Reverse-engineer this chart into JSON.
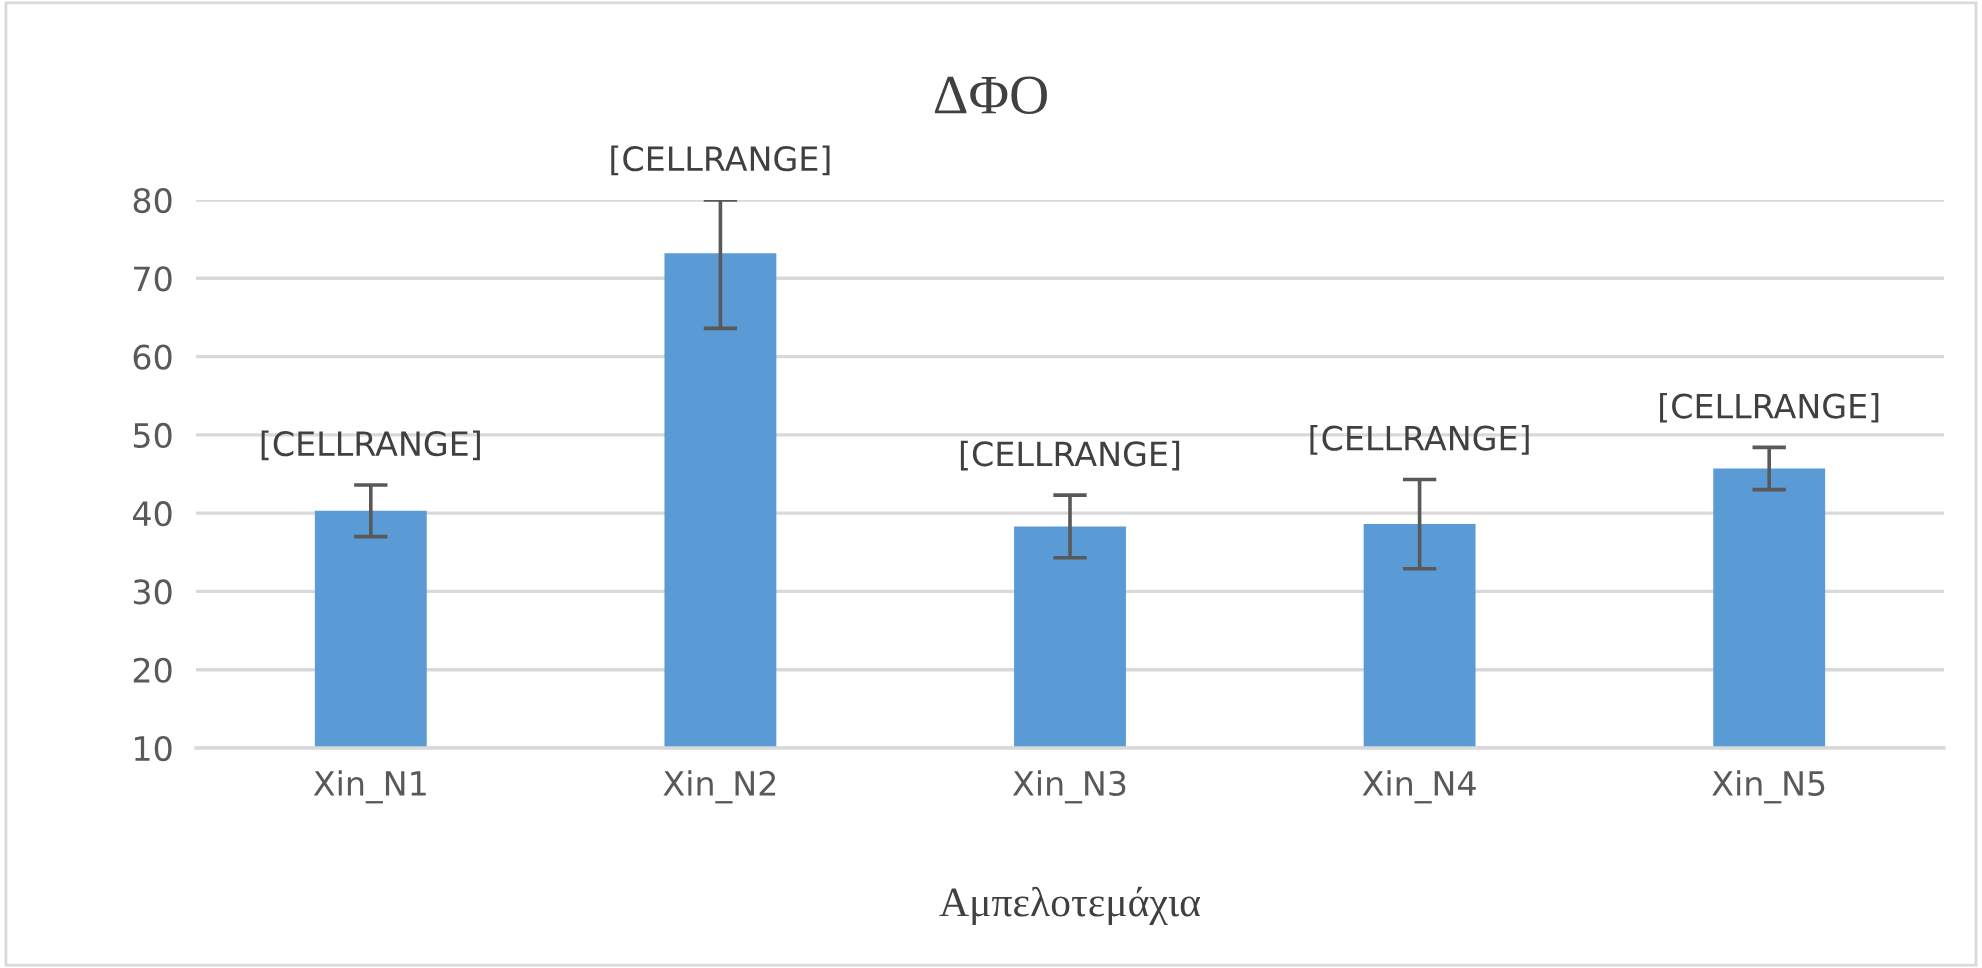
{
  "chart_data": {
    "type": "bar",
    "title": "ΔΦΟ",
    "xlabel": "Αμπελοτεμάχια",
    "categories": [
      "Xin_N1",
      "Xin_N2",
      "Xin_N3",
      "Xin_N4",
      "Xin_N5"
    ],
    "values": [
      40.3,
      73.2,
      38.3,
      38.6,
      45.7
    ],
    "errors": [
      3.3,
      [
        63.6,
        80
      ],
      4.0,
      5.7,
      2.7
    ],
    "value_labels": [
      "[CELLRANGE]",
      "[CELLRANGE]",
      "[CELLRANGE]",
      "[CELLRANGE]",
      "[CELLRANGE]"
    ],
    "color": "#5b9bd5",
    "ylim": [
      10,
      80
    ],
    "yticks": [
      10,
      20,
      30,
      40,
      50,
      60,
      70,
      80
    ],
    "grid": "y",
    "legend": false
  }
}
